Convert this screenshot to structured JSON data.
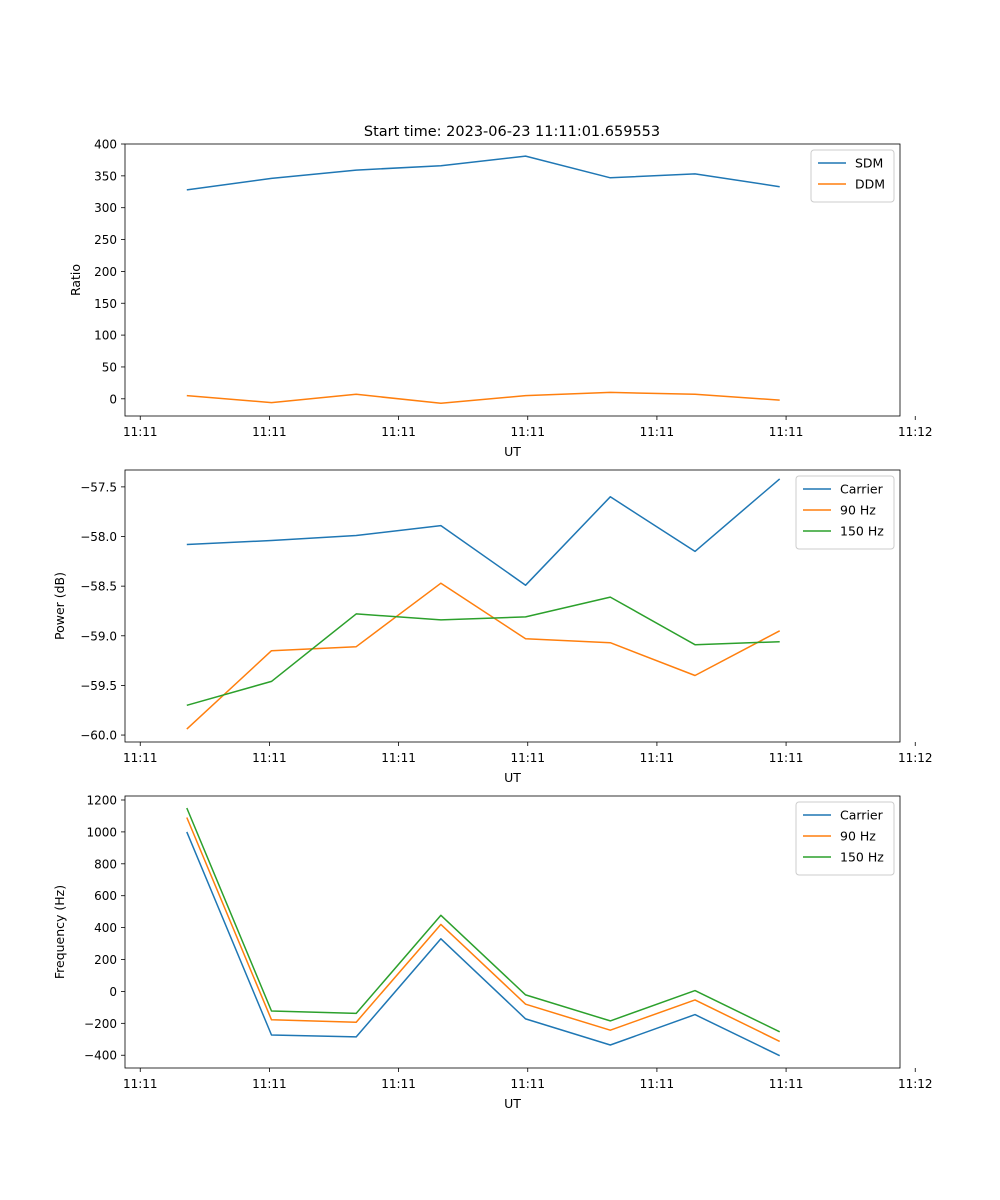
{
  "chart_data": [
    {
      "type": "line",
      "title": "Start time: 2023-06-23 11:11:01.659553",
      "xlabel": "UT",
      "ylabel": "Ratio",
      "x": [
        1,
        2,
        3,
        4,
        5,
        6,
        7,
        8
      ],
      "xlim": [
        0.27,
        9.42
      ],
      "xticks": [
        {
          "x": 0.45,
          "label": "11:11"
        },
        {
          "x": 1.975,
          "label": "11:11"
        },
        {
          "x": 3.5,
          "label": "11:11"
        },
        {
          "x": 5.025,
          "label": "11:11"
        },
        {
          "x": 6.55,
          "label": "11:11"
        },
        {
          "x": 8.075,
          "label": "11:11"
        },
        {
          "x": 9.6,
          "label": "11:12"
        }
      ],
      "ylim": [
        -27,
        400
      ],
      "yticks": [
        0,
        50,
        100,
        150,
        200,
        250,
        300,
        350,
        400
      ],
      "legend": "upper right",
      "series": [
        {
          "name": "SDM",
          "color": "#1f77b4",
          "values": [
            328,
            346,
            359,
            366,
            381,
            347,
            353,
            333
          ]
        },
        {
          "name": "DDM",
          "color": "#ff7f0e",
          "values": [
            5,
            -6,
            7,
            -7,
            5,
            10,
            7,
            -2
          ]
        }
      ]
    },
    {
      "type": "line",
      "title": "",
      "xlabel": "UT",
      "ylabel": "Power (dB)",
      "x": [
        1,
        2,
        3,
        4,
        5,
        6,
        7,
        8
      ],
      "xlim": [
        0.27,
        9.42
      ],
      "xticks": [
        {
          "x": 0.45,
          "label": "11:11"
        },
        {
          "x": 1.975,
          "label": "11:11"
        },
        {
          "x": 3.5,
          "label": "11:11"
        },
        {
          "x": 5.025,
          "label": "11:11"
        },
        {
          "x": 6.55,
          "label": "11:11"
        },
        {
          "x": 8.075,
          "label": "11:11"
        },
        {
          "x": 9.6,
          "label": "11:12"
        }
      ],
      "ylim": [
        -60.07,
        -57.33
      ],
      "yticks": [
        -60.0,
        -59.5,
        -59.0,
        -58.5,
        -58.0,
        -57.5
      ],
      "yticklabels": [
        "−60.0",
        "−59.5",
        "−59.0",
        "−58.5",
        "−58.0",
        "−57.5"
      ],
      "legend": "upper right",
      "series": [
        {
          "name": "Carrier",
          "color": "#1f77b4",
          "values": [
            -58.08,
            -58.04,
            -57.99,
            -57.89,
            -58.49,
            -57.6,
            -58.15,
            -57.42
          ]
        },
        {
          "name": "90 Hz",
          "color": "#ff7f0e",
          "values": [
            -59.94,
            -59.15,
            -59.11,
            -58.47,
            -59.03,
            -59.07,
            -59.4,
            -58.95
          ]
        },
        {
          "name": "150 Hz",
          "color": "#2ca02c",
          "values": [
            -59.7,
            -59.46,
            -58.78,
            -58.84,
            -58.81,
            -58.61,
            -59.09,
            -59.06
          ]
        }
      ]
    },
    {
      "type": "line",
      "title": "",
      "xlabel": "UT",
      "ylabel": "Frequency (Hz)",
      "x": [
        1,
        2,
        3,
        4,
        5,
        6,
        7,
        8
      ],
      "xlim": [
        0.27,
        9.42
      ],
      "xticks": [
        {
          "x": 0.45,
          "label": "11:11"
        },
        {
          "x": 1.975,
          "label": "11:11"
        },
        {
          "x": 3.5,
          "label": "11:11"
        },
        {
          "x": 5.025,
          "label": "11:11"
        },
        {
          "x": 6.55,
          "label": "11:11"
        },
        {
          "x": 8.075,
          "label": "11:11"
        },
        {
          "x": 9.6,
          "label": "11:12"
        }
      ],
      "ylim": [
        -480,
        1225
      ],
      "yticks": [
        -400,
        -200,
        0,
        200,
        400,
        600,
        800,
        1000,
        1200
      ],
      "yticklabels": [
        "−400",
        "−200",
        "0",
        "200",
        "400",
        "600",
        "800",
        "1000",
        "1200"
      ],
      "legend": "upper right",
      "series": [
        {
          "name": "Carrier",
          "color": "#1f77b4",
          "values": [
            1000,
            -273,
            -285,
            330,
            -172,
            -336,
            -145,
            -403
          ]
        },
        {
          "name": "90 Hz",
          "color": "#ff7f0e",
          "values": [
            1090,
            -178,
            -193,
            420,
            -80,
            -243,
            -53,
            -313
          ]
        },
        {
          "name": "150 Hz",
          "color": "#2ca02c",
          "values": [
            1150,
            -123,
            -138,
            477,
            -22,
            -185,
            5,
            -253
          ]
        }
      ]
    }
  ]
}
